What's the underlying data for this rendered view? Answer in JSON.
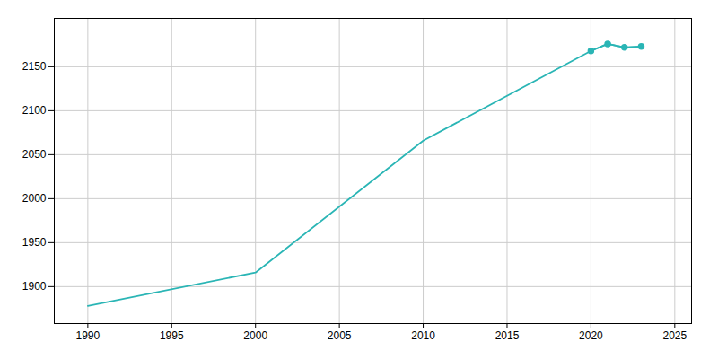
{
  "chart_data": {
    "type": "line",
    "x": [
      1990,
      2000,
      2010,
      2020,
      2021,
      2022,
      2023
    ],
    "series": [
      {
        "color": "#2ab5b5",
        "values": [
          1878,
          1916,
          2066,
          2168,
          2176,
          2172,
          2173
        ]
      },
      {
        "color": "#2ab5b5",
        "marker": "circle",
        "values": [
          null,
          null,
          null,
          2168,
          2176,
          2172,
          2173
        ]
      }
    ],
    "xlim": [
      1988,
      2026
    ],
    "ylim": [
      1858,
      2205
    ],
    "xticks": [
      1990,
      1995,
      2000,
      2005,
      2010,
      2015,
      2020,
      2025
    ],
    "yticks": [
      1900,
      1950,
      2000,
      2050,
      2100,
      2150
    ],
    "grid": true
  }
}
